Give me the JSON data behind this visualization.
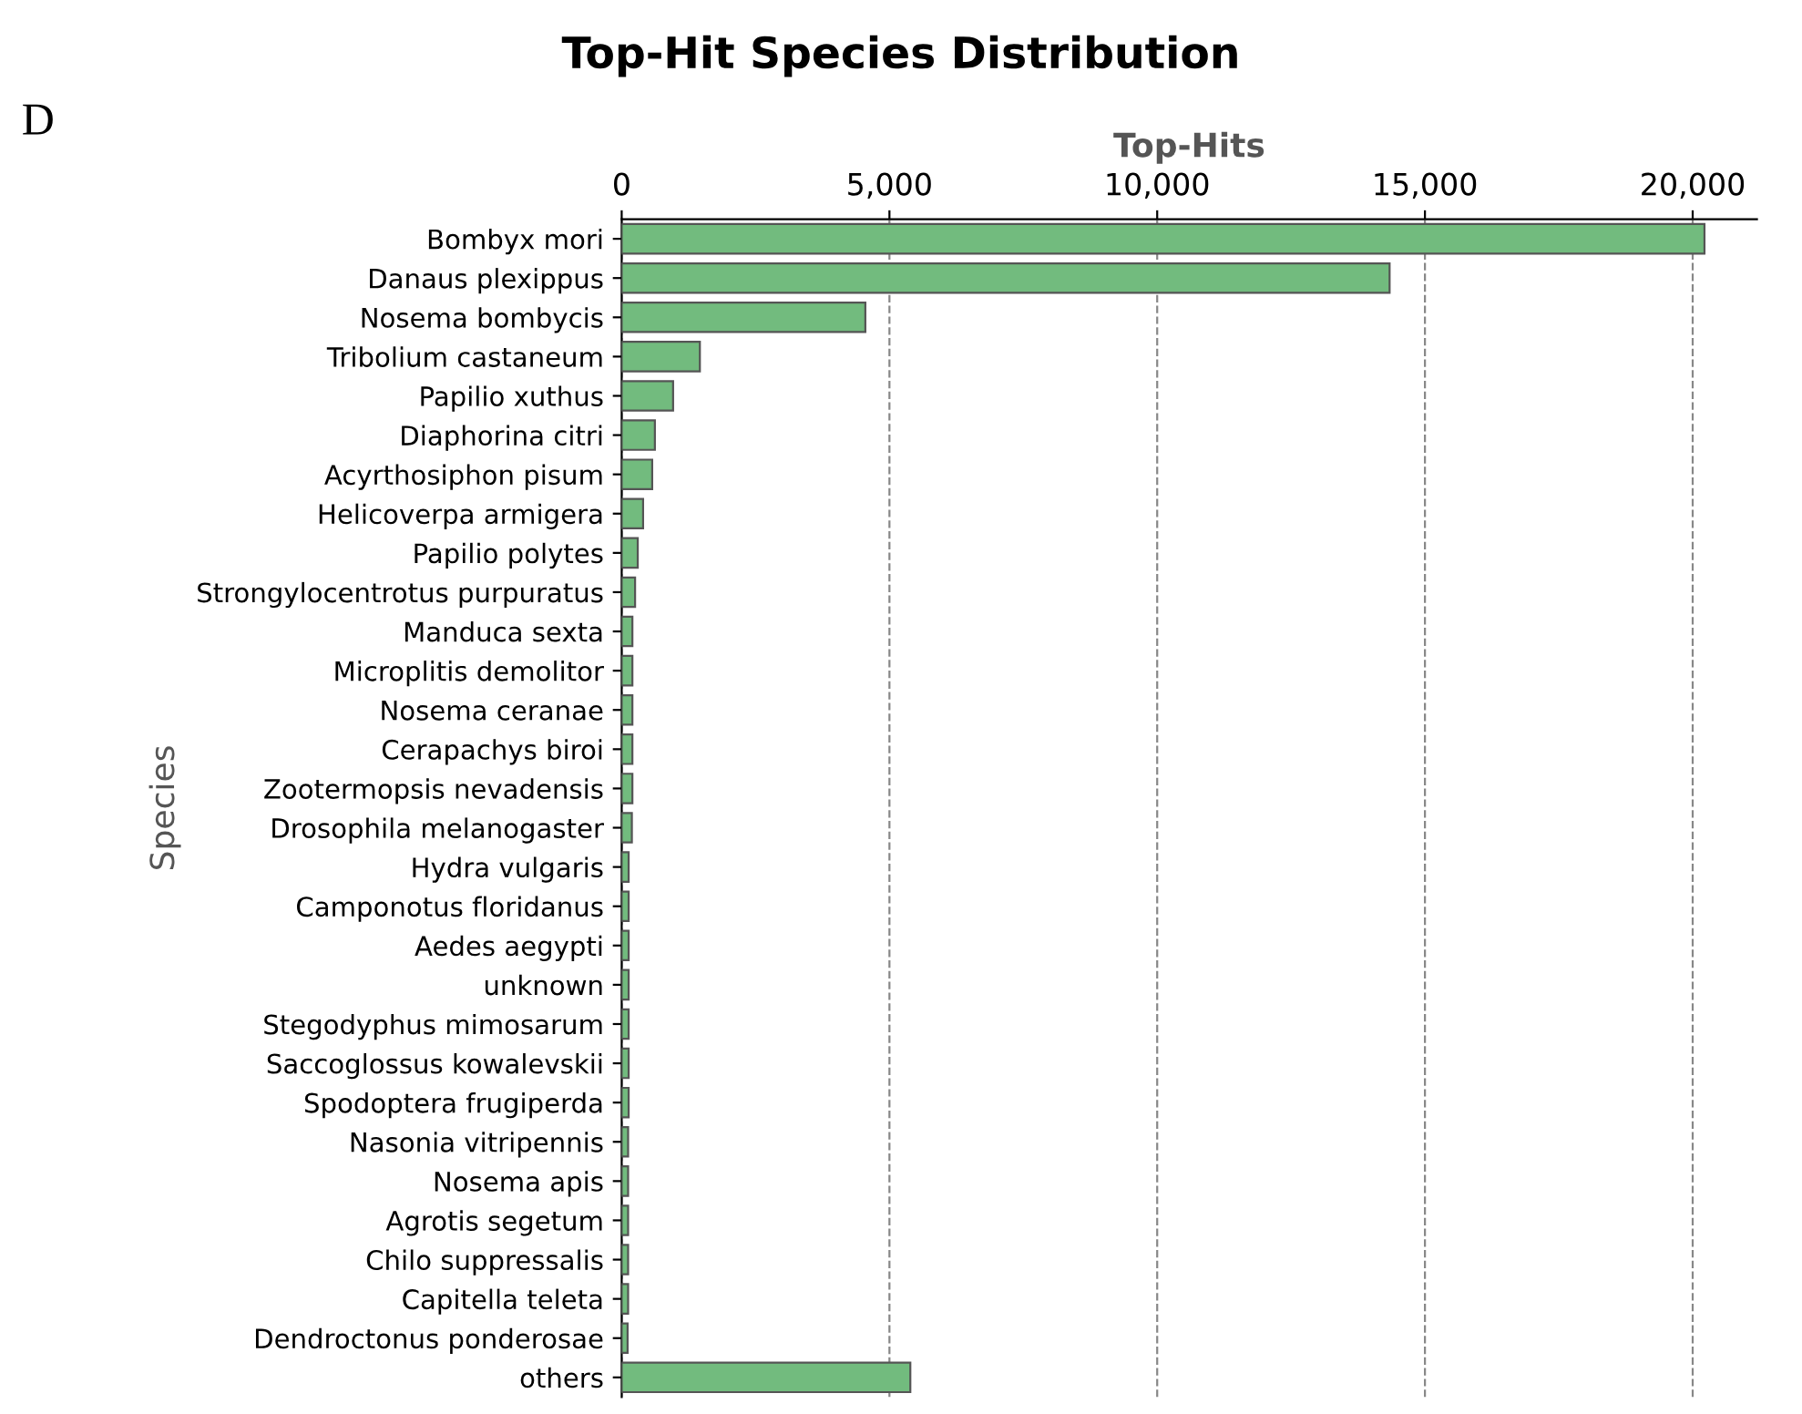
{
  "chart_data": {
    "type": "bar",
    "orientation": "horizontal",
    "title": "Top-Hit Species Distribution",
    "xlabel": "Top-Hits",
    "ylabel": "Species",
    "annotations": [
      "D"
    ],
    "categories": [
      "Bombyx mori",
      "Danaus plexippus",
      "Nosema bombycis",
      "Tribolium castaneum",
      "Papilio xuthus",
      "Diaphorina citri",
      "Acyrthosiphon pisum",
      "Helicoverpa armigera",
      "Papilio polytes",
      "Strongylocentrotus purpuratus",
      "Manduca sexta",
      "Microplitis demolitor",
      "Nosema ceranae",
      "Cerapachys biroi",
      "Zootermopsis nevadensis",
      "Drosophila melanogaster",
      "Hydra vulgaris",
      "Camponotus floridanus",
      "Aedes aegypti",
      "unknown",
      "Stegodyphus mimosarum",
      "Saccoglossus kowalevskii",
      "Spodoptera frugiperda",
      "Nasonia vitripennis",
      "Nosema apis",
      "Agrotis segetum",
      "Chilo suppressalis",
      "Capitella teleta",
      "Dendroctonus ponderosae",
      "others"
    ],
    "values": [
      20220,
      14340,
      4550,
      1460,
      960,
      620,
      570,
      400,
      300,
      250,
      200,
      200,
      200,
      200,
      200,
      190,
      130,
      130,
      130,
      130,
      130,
      130,
      130,
      120,
      120,
      120,
      120,
      120,
      110,
      5390
    ],
    "color": "#72bb7e",
    "xlim": [
      0,
      21200
    ],
    "xticks": [
      {
        "value": 0,
        "label": "0"
      },
      {
        "value": 5000,
        "label": "5,000"
      },
      {
        "value": 10000,
        "label": "10,000"
      },
      {
        "value": 15000,
        "label": "15,000"
      },
      {
        "value": 20000,
        "label": "20,000"
      }
    ],
    "grid": "x"
  }
}
